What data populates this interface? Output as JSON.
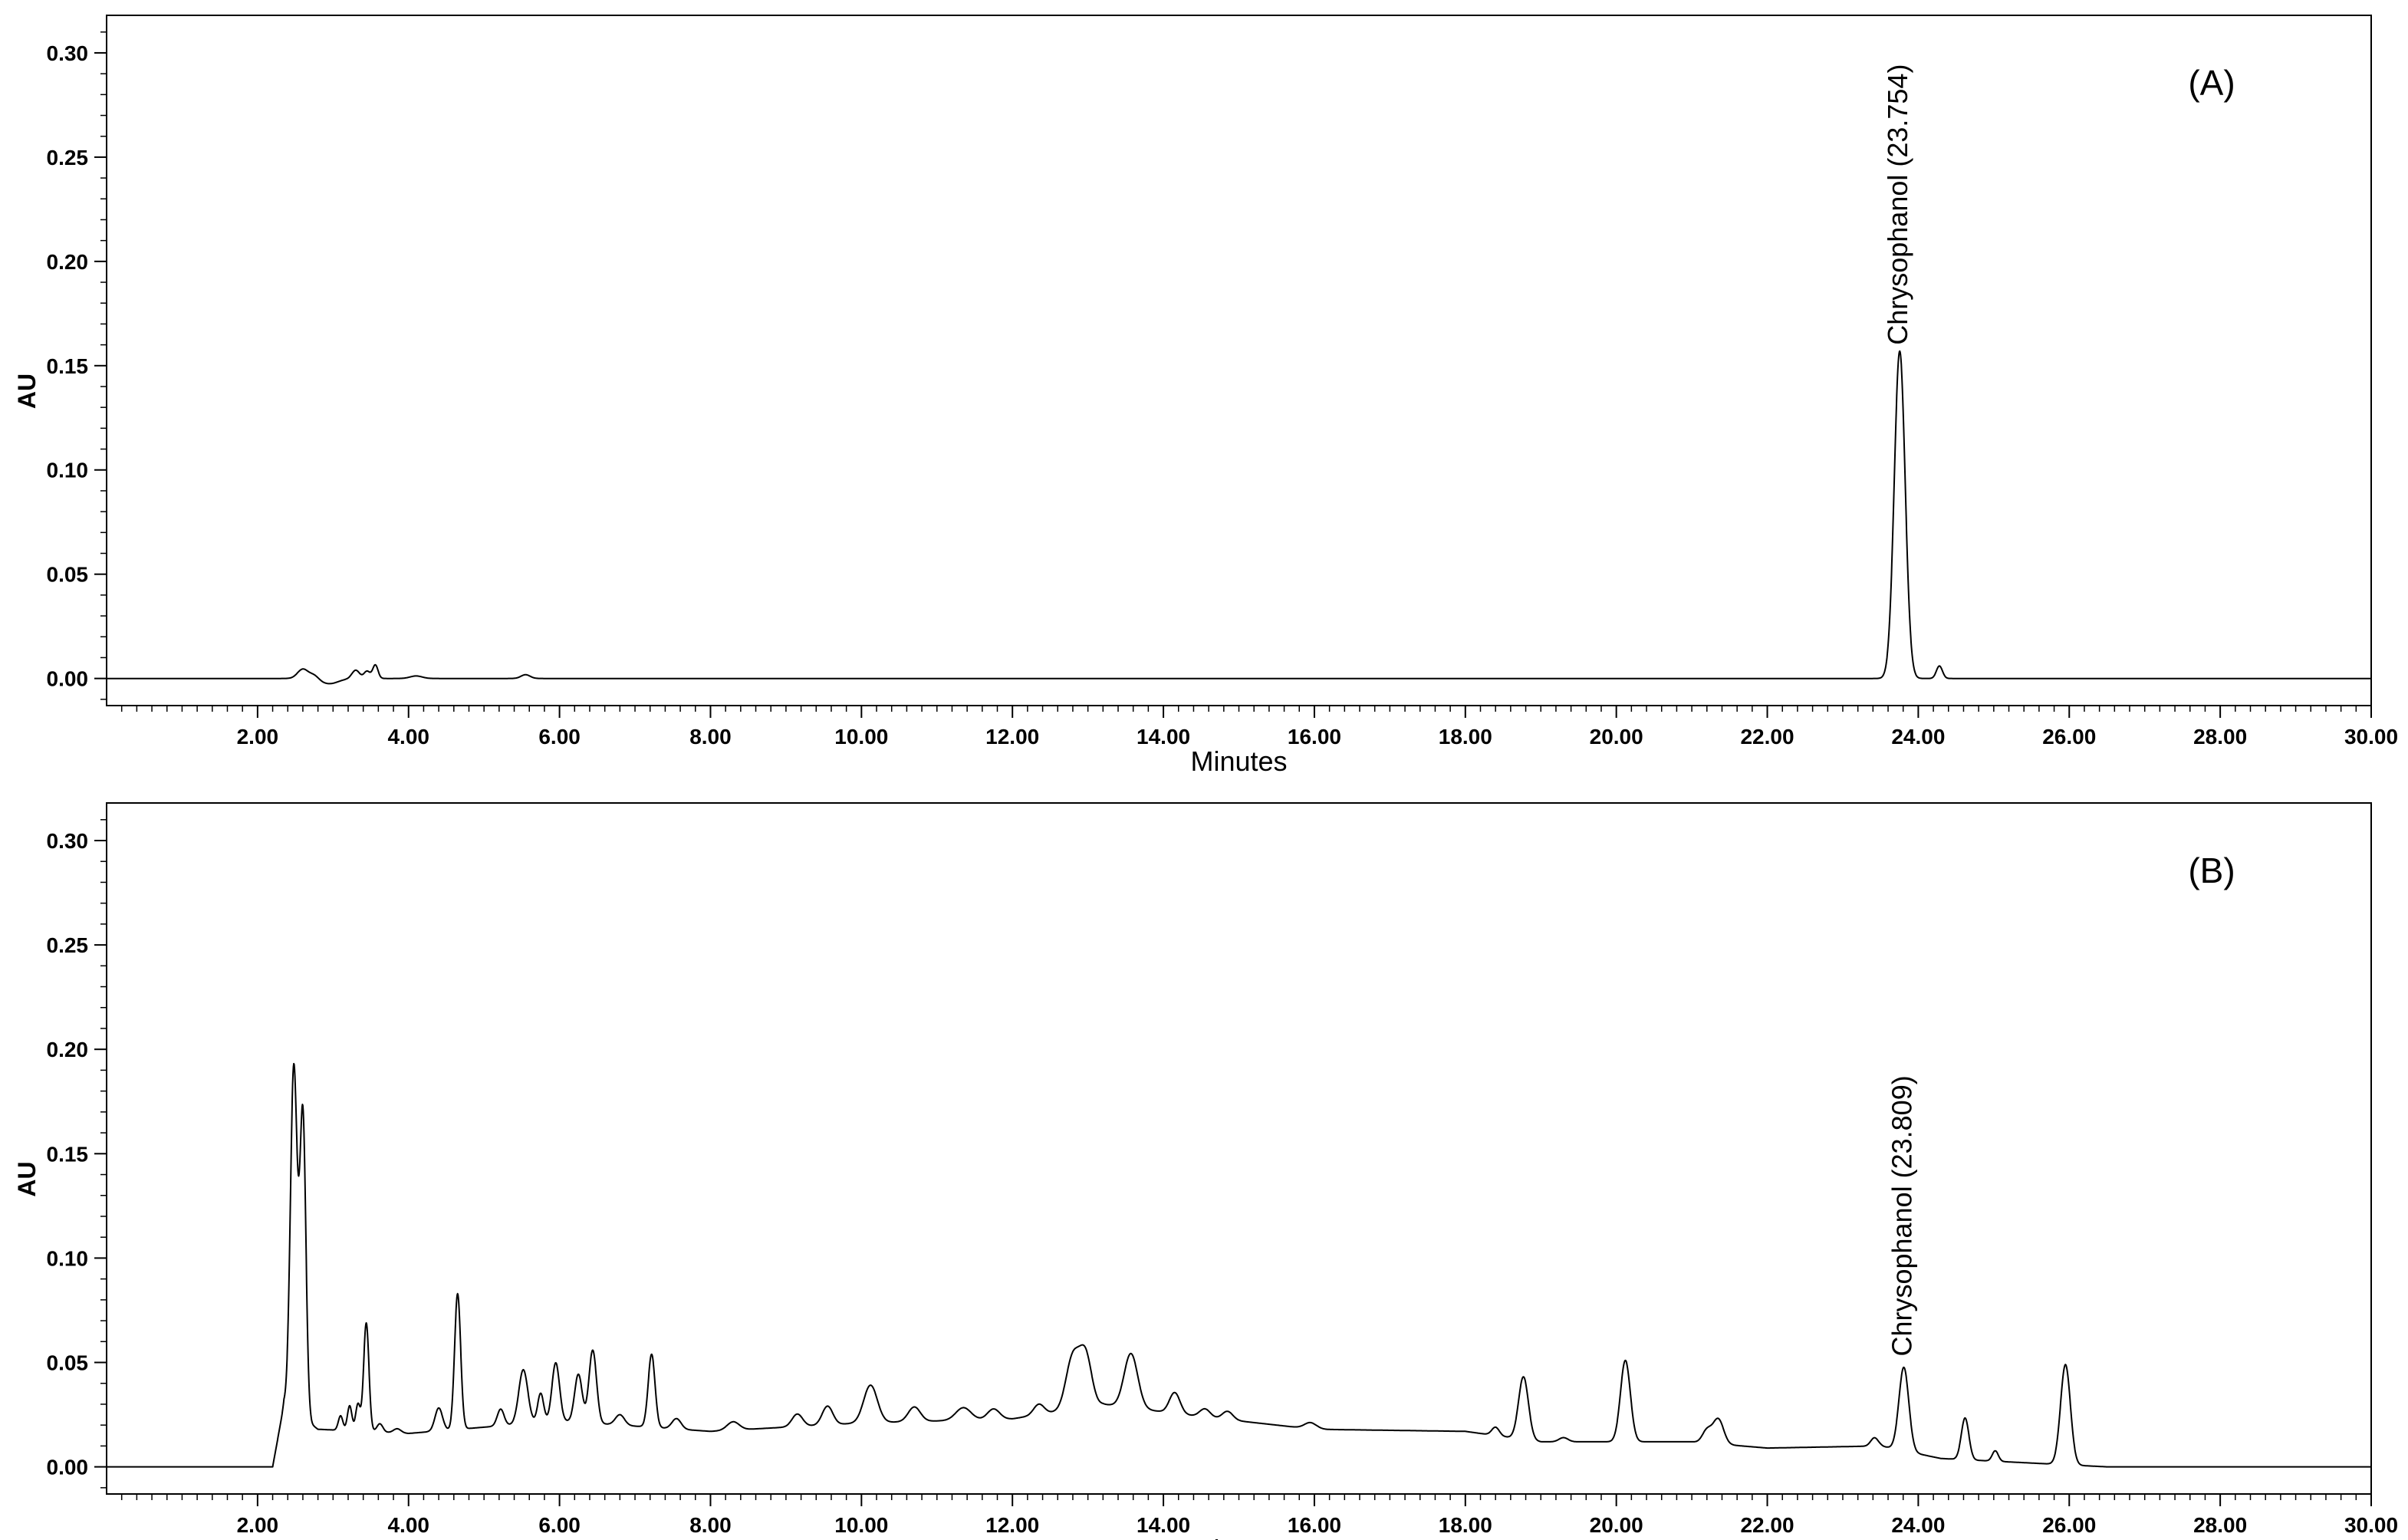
{
  "chart_data": [
    {
      "type": "line",
      "panel_label": "(A)",
      "xlabel": "Minutes",
      "ylabel": "AU",
      "xlim": [
        0,
        30
      ],
      "ylim": [
        -0.013,
        0.318
      ],
      "x_ticks": [
        2,
        4,
        6,
        8,
        10,
        12,
        14,
        16,
        18,
        20,
        22,
        24,
        26,
        28,
        30
      ],
      "x_tick_labels": [
        "2.00",
        "4.00",
        "6.00",
        "8.00",
        "10.00",
        "12.00",
        "14.00",
        "16.00",
        "18.00",
        "20.00",
        "22.00",
        "24.00",
        "26.00",
        "28.00",
        "30.00"
      ],
      "y_ticks": [
        0,
        0.05,
        0.1,
        0.15,
        0.2,
        0.25,
        0.3
      ],
      "y_tick_labels": [
        "0.00",
        "0.05",
        "0.10",
        "0.15",
        "0.20",
        "0.25",
        "0.30"
      ],
      "grid": false,
      "baseline": 0.0,
      "peaks": [
        [
          2.6,
          0.0045,
          0.07
        ],
        [
          2.75,
          0.002,
          0.06
        ],
        [
          2.95,
          -0.0025,
          0.12
        ],
        [
          3.3,
          0.004,
          0.05
        ],
        [
          3.45,
          0.0035,
          0.04
        ],
        [
          3.56,
          0.0065,
          0.035
        ],
        [
          4.1,
          0.0012,
          0.08
        ],
        [
          5.55,
          0.0018,
          0.06
        ],
        [
          23.754,
          0.157,
          0.072
        ],
        [
          24.28,
          0.006,
          0.04
        ]
      ],
      "series": [
        {
          "values_note": ""
        }
      ],
      "annotations": [
        {
          "text": "Chrysophanol (23.754)",
          "x": 23.754,
          "y": 0.157
        }
      ]
    },
    {
      "type": "line",
      "panel_label": "(B)",
      "xlabel": "Minutes",
      "ylabel": "AU",
      "xlim": [
        0,
        30
      ],
      "ylim": [
        -0.013,
        0.318
      ],
      "x_ticks": [
        2,
        4,
        6,
        8,
        10,
        12,
        14,
        16,
        18,
        20,
        22,
        24,
        26,
        28,
        30
      ],
      "x_tick_labels": [
        "2.00",
        "4.00",
        "6.00",
        "8.00",
        "10.00",
        "12.00",
        "14.00",
        "16.00",
        "18.00",
        "20.00",
        "22.00",
        "24.00",
        "26.00",
        "28.00",
        "30.00"
      ],
      "y_ticks": [
        0,
        0.05,
        0.1,
        0.15,
        0.2,
        0.25,
        0.3
      ],
      "y_tick_labels": [
        "0.00",
        "0.05",
        "0.10",
        "0.15",
        "0.20",
        "0.25",
        "0.30"
      ],
      "grid": false,
      "baseline": 0.0,
      "drift": [
        [
          0,
          0.0
        ],
        [
          2.2,
          0.0
        ],
        [
          2.35,
          0.03
        ],
        [
          2.8,
          0.018
        ],
        [
          4.0,
          0.016
        ],
        [
          6.0,
          0.022
        ],
        [
          8.0,
          0.017
        ],
        [
          10.0,
          0.021
        ],
        [
          12.0,
          0.023
        ],
        [
          13.2,
          0.03
        ],
        [
          14.5,
          0.024
        ],
        [
          16.0,
          0.018
        ],
        [
          18.0,
          0.017
        ],
        [
          19.0,
          0.012
        ],
        [
          21.0,
          0.012
        ],
        [
          22.0,
          0.009
        ],
        [
          23.5,
          0.01
        ],
        [
          24.3,
          0.004
        ],
        [
          26.5,
          0.0
        ],
        [
          30.0,
          0.0
        ]
      ],
      "peaks": [
        [
          2.48,
          0.165,
          0.045
        ],
        [
          2.6,
          0.145,
          0.04
        ],
        [
          3.1,
          0.007,
          0.03
        ],
        [
          3.22,
          0.012,
          0.03
        ],
        [
          3.33,
          0.013,
          0.03
        ],
        [
          3.44,
          0.052,
          0.035
        ],
        [
          3.62,
          0.004,
          0.04
        ],
        [
          3.85,
          0.002,
          0.05
        ],
        [
          4.4,
          0.011,
          0.05
        ],
        [
          4.65,
          0.065,
          0.04
        ],
        [
          5.22,
          0.008,
          0.045
        ],
        [
          5.52,
          0.026,
          0.06
        ],
        [
          5.75,
          0.014,
          0.04
        ],
        [
          5.95,
          0.028,
          0.05
        ],
        [
          6.25,
          0.023,
          0.05
        ],
        [
          6.44,
          0.035,
          0.05
        ],
        [
          6.8,
          0.005,
          0.06
        ],
        [
          7.22,
          0.035,
          0.045
        ],
        [
          7.55,
          0.005,
          0.06
        ],
        [
          8.3,
          0.004,
          0.08
        ],
        [
          9.15,
          0.006,
          0.07
        ],
        [
          9.55,
          0.009,
          0.07
        ],
        [
          10.12,
          0.018,
          0.09
        ],
        [
          10.7,
          0.007,
          0.08
        ],
        [
          11.35,
          0.006,
          0.1
        ],
        [
          11.75,
          0.005,
          0.08
        ],
        [
          12.35,
          0.005,
          0.07
        ],
        [
          12.8,
          0.025,
          0.09
        ],
        [
          12.97,
          0.024,
          0.08
        ],
        [
          13.57,
          0.026,
          0.09
        ],
        [
          14.15,
          0.01,
          0.07
        ],
        [
          14.55,
          0.004,
          0.07
        ],
        [
          14.85,
          0.004,
          0.07
        ],
        [
          15.95,
          0.003,
          0.08
        ],
        [
          18.4,
          0.004,
          0.05
        ],
        [
          18.77,
          0.03,
          0.065
        ],
        [
          19.3,
          0.002,
          0.06
        ],
        [
          20.12,
          0.039,
          0.065
        ],
        [
          21.2,
          0.006,
          0.06
        ],
        [
          21.35,
          0.012,
          0.07
        ],
        [
          23.42,
          0.004,
          0.05
        ],
        [
          23.809,
          0.04,
          0.065
        ],
        [
          24.62,
          0.02,
          0.05
        ],
        [
          25.02,
          0.005,
          0.04
        ],
        [
          25.95,
          0.048,
          0.065
        ]
      ],
      "series": [
        {
          "values_note": ""
        }
      ],
      "annotations": [
        {
          "text": "Chrysophanol (23.809)",
          "x": 23.809,
          "y": 0.05
        }
      ]
    }
  ]
}
